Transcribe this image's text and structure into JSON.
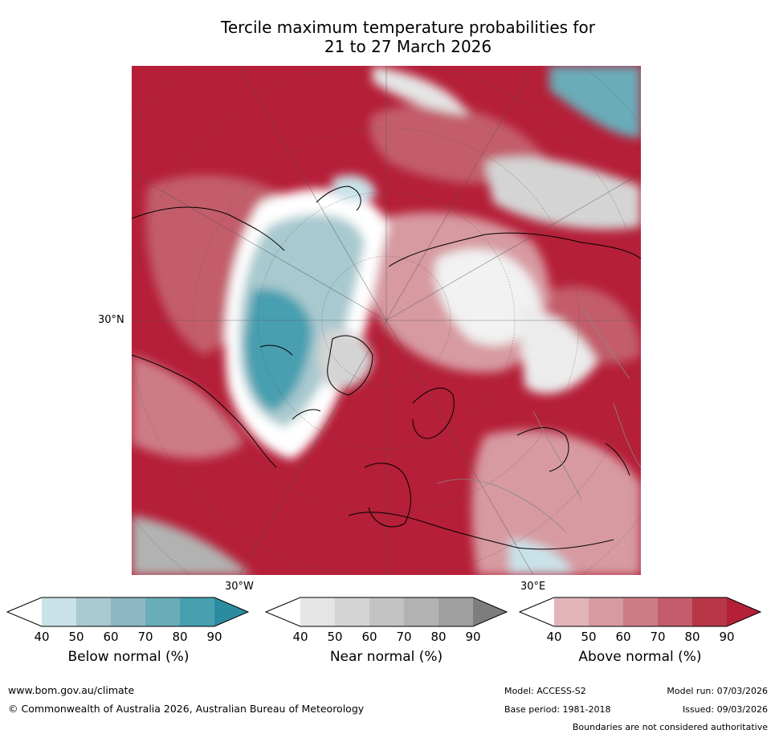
{
  "title": {
    "line1": "Tercile maximum temperature probabilities for",
    "line2": "21 to 27 March 2026"
  },
  "map": {
    "lat_label": "30°N",
    "lon_labels": [
      "30°W",
      "30°E"
    ]
  },
  "legend": {
    "ticks": [
      "40",
      "50",
      "60",
      "70",
      "80",
      "90"
    ],
    "bars": [
      {
        "title": "Below normal (%)",
        "colors": [
          "#ffffff",
          "#c9e2e8",
          "#a8c9cf",
          "#8cb7c2",
          "#6aacb8",
          "#479fb0",
          "#2b8c9f"
        ]
      },
      {
        "title": "Near normal (%)",
        "colors": [
          "#ffffff",
          "#e5e5e5",
          "#d4d4d4",
          "#c3c3c3",
          "#b2b2b2",
          "#a0a0a0",
          "#7d7d7d"
        ]
      },
      {
        "title": "Above normal (%)",
        "colors": [
          "#ffffff",
          "#e2b4b9",
          "#d79aa1",
          "#cd7c86",
          "#c35d6b",
          "#b73749",
          "#b51f38"
        ]
      }
    ]
  },
  "footer": {
    "website": "www.bom.gov.au/climate",
    "copyright": "© Commonwealth of Australia 2026, Australian Bureau of Meteorology",
    "model": "Model: ACCESS-S2",
    "model_run": "Model run: 07/03/2026",
    "base_period": "Base period: 1981-2018",
    "issued": "Issued: 09/03/2026",
    "disclaimer": "Boundaries are not considered authoritative"
  }
}
